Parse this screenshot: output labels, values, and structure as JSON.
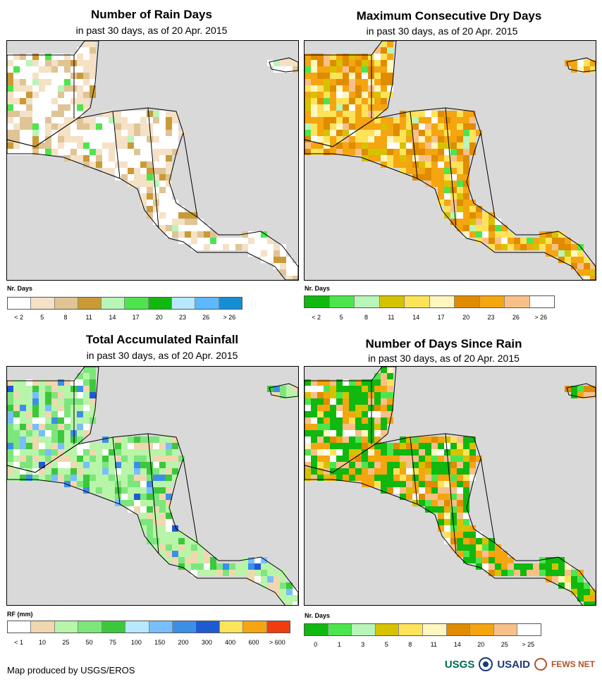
{
  "panels": [
    {
      "title": "Number of Rain Days",
      "subtitle": "in past 30 days, as of 20 Apr. 2015",
      "unit": "Nr. Days",
      "legend": {
        "colors": [
          "#ffffff",
          "#f5e1c5",
          "#dfc495",
          "#c99a36",
          "#b8f5b8",
          "#4ce64c",
          "#10b810",
          "#b8e8ff",
          "#5cb8ff",
          "#148fd6"
        ],
        "labels": [
          "< 2",
          "5",
          "8",
          "11",
          "14",
          "17",
          "20",
          "23",
          "26",
          "> 26"
        ]
      },
      "palette": [
        "#ffffff",
        "#f5e1c5",
        "#dfc495",
        "#c99a36",
        "#4ce64c",
        "#b8f5b8"
      ],
      "weights": [
        6,
        4,
        2,
        1,
        0.3,
        0.2
      ]
    },
    {
      "title": "Maximum Consecutive Dry Days",
      "subtitle": "in past 30 days, as of 20 Apr. 2015",
      "unit": "Nr. Days",
      "legend": {
        "colors": [
          "#10b810",
          "#4ce64c",
          "#b8f5b8",
          "#d7c200",
          "#fde35a",
          "#fff6c0",
          "#e08c00",
          "#f5a50f",
          "#f8c089",
          "#ffffff"
        ],
        "labels": [
          "< 2",
          "5",
          "8",
          "11",
          "14",
          "17",
          "20",
          "23",
          "26",
          "> 26"
        ]
      },
      "palette": [
        "#f5a50f",
        "#e08c00",
        "#fde35a",
        "#d7c200",
        "#fff6c0",
        "#f8c089",
        "#ffffff",
        "#b8f5b8",
        "#4ce64c"
      ],
      "weights": [
        5,
        3,
        3,
        1.5,
        1,
        1,
        0.8,
        0.5,
        0.3
      ]
    },
    {
      "title": "Total Accumulated Rainfall",
      "subtitle": "in past 30 days, as of 20 Apr. 2015",
      "unit": "RF (mm)",
      "legend": {
        "colors": [
          "#ffffff",
          "#f0d7b0",
          "#b8f5a8",
          "#7ce67c",
          "#3cc83c",
          "#b8e8ff",
          "#78beff",
          "#3c8fe6",
          "#1e5ad2",
          "#fde35a",
          "#f5a50f",
          "#f03c0f"
        ],
        "labels": [
          "< 1",
          "10",
          "25",
          "50",
          "75",
          "100",
          "150",
          "200",
          "300",
          "400",
          "600",
          "> 600"
        ]
      },
      "palette": [
        "#b8f5a8",
        "#7ce67c",
        "#3cc83c",
        "#f0d7b0",
        "#ffffff",
        "#78beff",
        "#3c8fe6",
        "#1e5ad2"
      ],
      "weights": [
        5,
        3,
        1.5,
        2,
        1,
        0.8,
        0.5,
        0.3
      ]
    },
    {
      "title": "Number of Days Since Rain",
      "subtitle": "in past 30 days, as of 20 Apr. 2015",
      "unit": "Nr. Days",
      "legend": {
        "colors": [
          "#10b810",
          "#4ce64c",
          "#b8f5b8",
          "#d7c200",
          "#fde35a",
          "#fff6c0",
          "#e08c00",
          "#f5a50f",
          "#f8c089",
          "#ffffff"
        ],
        "labels": [
          "0",
          "1",
          "3",
          "5",
          "8",
          "11",
          "14",
          "20",
          "25",
          "> 25"
        ]
      },
      "palette": [
        "#10b810",
        "#4ce64c",
        "#f5a50f",
        "#f8c089",
        "#d7c200",
        "#fde35a",
        "#ffffff",
        "#e08c00",
        "#fff6c0"
      ],
      "weights": [
        5,
        1.5,
        3,
        2.5,
        1.5,
        1,
        1,
        0.8,
        0.5
      ]
    }
  ],
  "footer": "Map produced by USGS/EROS",
  "logos": {
    "usgs": "USGS",
    "usaid": "USAID",
    "fews": "FEWS NET"
  }
}
